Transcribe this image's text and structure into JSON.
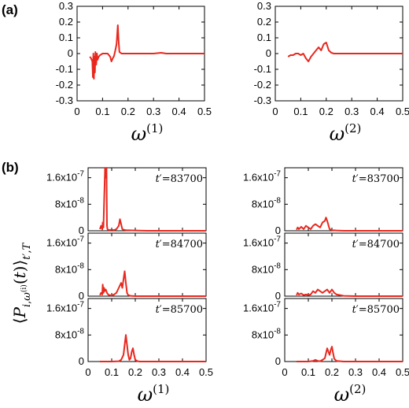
{
  "panel_labels": {
    "a": "(a)",
    "b": "(b)"
  },
  "ylabel_b": "⟨P_{i,ω^(i)}(t)⟩_{t′,T}",
  "chart_data": [
    {
      "id": "a1",
      "type": "line",
      "panel": "a",
      "xlabel": "ω",
      "xlabel_sup": "(1)",
      "xlim": [
        0,
        0.5
      ],
      "ylim": [
        -0.3,
        0.3
      ],
      "xticks": [
        "0",
        "0.1",
        "0.2",
        "0.3",
        "0.4",
        "0.5"
      ],
      "yticks": [
        "0.3",
        "0.2",
        "0.1",
        "0",
        "-0.1",
        "-0.2",
        "-0.3"
      ],
      "color": "#e8281e",
      "x": [
        0.05,
        0.055,
        0.06,
        0.062,
        0.064,
        0.066,
        0.068,
        0.07,
        0.072,
        0.075,
        0.078,
        0.08,
        0.085,
        0.09,
        0.1,
        0.11,
        0.12,
        0.13,
        0.135,
        0.14,
        0.145,
        0.15,
        0.155,
        0.16,
        0.163,
        0.166,
        0.17,
        0.175,
        0.18,
        0.2,
        0.25,
        0.3,
        0.33,
        0.35,
        0.4,
        0.45,
        0.5
      ],
      "y": [
        -0.02,
        -0.03,
        -0.05,
        -0.15,
        0.0,
        -0.16,
        -0.02,
        -0.12,
        0.01,
        -0.07,
        0.0,
        -0.04,
        -0.02,
        -0.01,
        0.0,
        0.0,
        0.0,
        -0.02,
        -0.05,
        -0.03,
        -0.015,
        0.02,
        0.06,
        0.18,
        0.08,
        0.01,
        0.005,
        0.0,
        0.0,
        0.0,
        0.0,
        0.0,
        0.005,
        0.0,
        0.0,
        0.0,
        0.0
      ]
    },
    {
      "id": "a2",
      "type": "line",
      "panel": "a",
      "xlabel": "ω",
      "xlabel_sup": "(2)",
      "xlim": [
        0,
        0.5
      ],
      "ylim": [
        -0.3,
        0.3
      ],
      "xticks": [
        "0",
        "0.1",
        "0.2",
        "0.3",
        "0.4",
        "0.5"
      ],
      "yticks": [
        "0.3",
        "0.2",
        "0.1",
        "0",
        "-0.1",
        "-0.2",
        "-0.3"
      ],
      "color": "#e8281e",
      "x": [
        0.05,
        0.06,
        0.07,
        0.08,
        0.09,
        0.1,
        0.11,
        0.12,
        0.13,
        0.14,
        0.15,
        0.16,
        0.17,
        0.18,
        0.19,
        0.2,
        0.21,
        0.22,
        0.23,
        0.25,
        0.3,
        0.35,
        0.4,
        0.45,
        0.5
      ],
      "y": [
        -0.02,
        -0.01,
        -0.01,
        0.0,
        0.0,
        -0.01,
        0.0,
        -0.03,
        -0.05,
        -0.02,
        0.0,
        0.02,
        0.04,
        0.02,
        0.06,
        0.07,
        0.02,
        0.005,
        0.0,
        0.0,
        0.0,
        0.0,
        0.0,
        0.0,
        0.0
      ]
    },
    {
      "id": "b11",
      "type": "line",
      "panel": "b",
      "annotation": "t′=83700",
      "xlim": [
        0,
        0.5
      ],
      "ylim": [
        0,
        1.9e-07
      ],
      "xticks": [],
      "yticks": [
        "1.6x10-7",
        "8x10-8",
        "0"
      ],
      "color": "#e8281e",
      "x": [
        0.05,
        0.055,
        0.06,
        0.062,
        0.065,
        0.068,
        0.07,
        0.072,
        0.075,
        0.078,
        0.08,
        0.082,
        0.085,
        0.09,
        0.1,
        0.11,
        0.12,
        0.13,
        0.135,
        0.14,
        0.145,
        0.15,
        0.16,
        0.2,
        0.25,
        0.3,
        0.35,
        0.4,
        0.45,
        0.5
      ],
      "y": [
        5e-09,
        1.5e-08,
        4e-09,
        2.5e-08,
        1e-08,
        9e-08,
        1.4e-07,
        1.9e-07,
        1.6e-07,
        1.95e-07,
        1.5e-08,
        5e-09,
        3e-09,
        2e-09,
        3e-09,
        2e-09,
        5e-09,
        1.5e-08,
        3.5e-08,
        2e-08,
        5e-09,
        3e-09,
        2e-09,
        1e-09,
        0,
        0,
        0,
        0,
        0,
        0
      ]
    },
    {
      "id": "b12",
      "type": "line",
      "panel": "b",
      "annotation": "t′=83700",
      "xlim": [
        0,
        0.5
      ],
      "ylim": [
        0,
        1.9e-07
      ],
      "xticks": [],
      "yticks": [
        "1.6x10-7",
        "8x10-8",
        "0"
      ],
      "color": "#e8281e",
      "x": [
        0.05,
        0.055,
        0.06,
        0.07,
        0.08,
        0.09,
        0.1,
        0.11,
        0.12,
        0.13,
        0.14,
        0.15,
        0.16,
        0.17,
        0.175,
        0.18,
        0.19,
        0.2,
        0.22,
        0.25,
        0.3,
        0.35,
        0.4,
        0.45,
        0.5
      ],
      "y": [
        3e-09,
        1e-08,
        5e-09,
        1.2e-08,
        5e-09,
        1.5e-08,
        1e-08,
        5e-09,
        1.5e-08,
        2e-08,
        1.5e-08,
        1e-08,
        2.5e-08,
        3e-08,
        4e-08,
        3e-08,
        5e-09,
        2e-09,
        1e-09,
        0,
        0,
        0,
        0,
        0,
        0
      ]
    },
    {
      "id": "b21",
      "type": "line",
      "panel": "b",
      "annotation": "t′=84700",
      "xlim": [
        0,
        0.5
      ],
      "ylim": [
        0,
        1.9e-07
      ],
      "xticks": [],
      "yticks": [
        "1.6x10-7",
        "8x10-8",
        "0"
      ],
      "color": "#e8281e",
      "x": [
        0.05,
        0.055,
        0.06,
        0.062,
        0.065,
        0.068,
        0.07,
        0.075,
        0.08,
        0.085,
        0.09,
        0.1,
        0.11,
        0.12,
        0.13,
        0.14,
        0.145,
        0.15,
        0.155,
        0.16,
        0.165,
        0.17,
        0.18,
        0.2,
        0.25,
        0.3,
        0.35,
        0.4,
        0.45,
        0.5
      ],
      "y": [
        3e-09,
        1e-08,
        5e-09,
        3.5e-08,
        1e-08,
        2.5e-08,
        1.5e-08,
        2e-08,
        1e-08,
        5e-09,
        3e-09,
        2e-09,
        5e-09,
        1e-08,
        2.5e-08,
        4e-08,
        2.5e-08,
        5e-08,
        7.5e-08,
        4e-08,
        1e-08,
        3e-09,
        1e-09,
        0,
        0,
        0,
        0,
        0,
        0,
        0
      ]
    },
    {
      "id": "b22",
      "type": "line",
      "panel": "b",
      "annotation": "t′=84700",
      "xlim": [
        0,
        0.5
      ],
      "ylim": [
        0,
        1.9e-07
      ],
      "xticks": [],
      "yticks": [
        "1.6x10-7",
        "8x10-8",
        "0"
      ],
      "color": "#e8281e",
      "x": [
        0.05,
        0.055,
        0.06,
        0.07,
        0.08,
        0.09,
        0.1,
        0.11,
        0.12,
        0.13,
        0.14,
        0.15,
        0.16,
        0.17,
        0.18,
        0.19,
        0.2,
        0.21,
        0.22,
        0.25,
        0.3,
        0.35,
        0.4,
        0.45,
        0.5
      ],
      "y": [
        3e-09,
        1e-08,
        5e-09,
        8e-09,
        3e-09,
        5e-09,
        3e-09,
        5e-09,
        1.5e-08,
        1e-08,
        2e-08,
        1.5e-08,
        1e-08,
        1.5e-08,
        2e-08,
        1e-08,
        2e-08,
        1e-08,
        5e-09,
        1e-09,
        0,
        0,
        0,
        0,
        0
      ]
    },
    {
      "id": "b31",
      "type": "line",
      "panel": "b",
      "annotation": "t′=85700",
      "xlabel": "ω",
      "xlabel_sup": "(1)",
      "xlim": [
        0,
        0.5
      ],
      "ylim": [
        0,
        1.9e-07
      ],
      "xticks": [
        "0",
        "0.1",
        "0.2",
        "0.3",
        "0.4",
        "0.5"
      ],
      "yticks": [
        "1.6x10-7",
        "8x10-8",
        "0"
      ],
      "color": "#e8281e",
      "x": [
        0.05,
        0.1,
        0.13,
        0.14,
        0.15,
        0.155,
        0.16,
        0.165,
        0.17,
        0.175,
        0.18,
        0.185,
        0.19,
        0.195,
        0.2,
        0.21,
        0.22,
        0.25,
        0.3,
        0.35,
        0.4,
        0.45,
        0.5
      ],
      "y": [
        0,
        0,
        1e-09,
        5e-09,
        2e-08,
        5e-08,
        8e-08,
        5e-08,
        2e-08,
        5e-09,
        1e-08,
        3e-08,
        4e-08,
        2e-08,
        5e-09,
        1e-09,
        0,
        0,
        0,
        0,
        0,
        0,
        0
      ]
    },
    {
      "id": "b32",
      "type": "line",
      "panel": "b",
      "annotation": "t′=85700",
      "xlabel": "ω",
      "xlabel_sup": "(2)",
      "xlim": [
        0,
        0.5
      ],
      "ylim": [
        0,
        1.9e-07
      ],
      "xticks": [
        "0",
        "0.1",
        "0.2",
        "0.3",
        "0.4",
        "0.5"
      ],
      "yticks": [
        "1.6x10-7",
        "8x10-8",
        "0"
      ],
      "color": "#e8281e",
      "x": [
        0.05,
        0.1,
        0.12,
        0.13,
        0.14,
        0.15,
        0.16,
        0.17,
        0.175,
        0.18,
        0.185,
        0.19,
        0.195,
        0.2,
        0.205,
        0.21,
        0.22,
        0.25,
        0.3,
        0.35,
        0.4,
        0.45,
        0.5
      ],
      "y": [
        0,
        0,
        2e-09,
        5e-09,
        2e-09,
        1e-09,
        5e-09,
        1e-08,
        2.5e-08,
        4e-08,
        3e-08,
        2e-08,
        3.5e-08,
        4.5e-08,
        2.5e-08,
        8e-09,
        2e-09,
        0,
        0,
        0,
        0,
        0,
        0
      ]
    }
  ]
}
